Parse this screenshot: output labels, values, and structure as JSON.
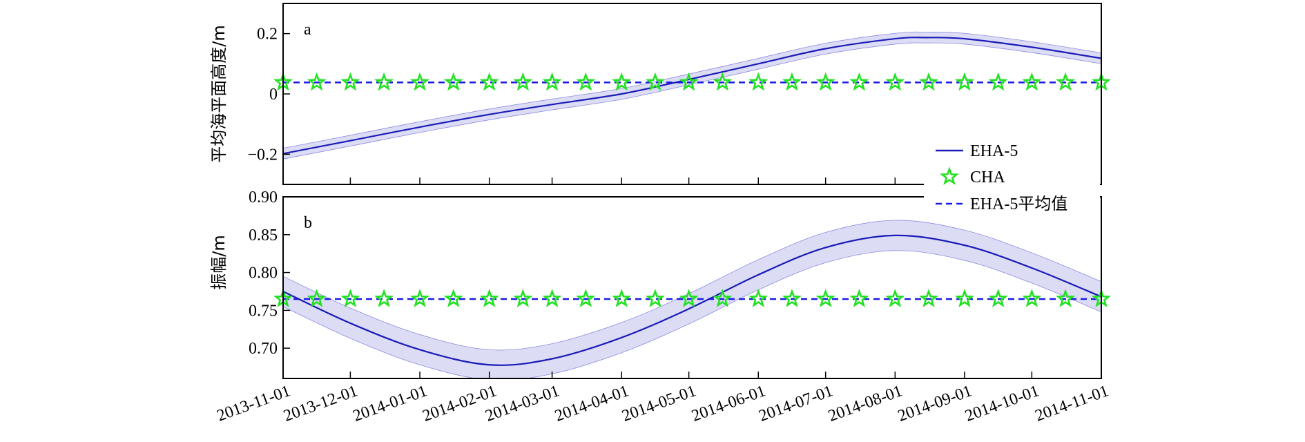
{
  "chart_data": [
    {
      "panel_label": "a",
      "type": "line",
      "ylabel": "平均海平面高度/m",
      "ylim": [
        -0.3,
        0.3
      ],
      "yticks": [
        -0.2,
        0,
        0.2
      ],
      "ytick_labels": [
        "−0.2",
        "0",
        "0.2"
      ],
      "series": [
        {
          "name": "EHA-5",
          "x": [
            "2013-11-01",
            "2013-12-01",
            "2014-01-01",
            "2014-02-01",
            "2014-03-01",
            "2014-04-01",
            "2014-05-01",
            "2014-06-01",
            "2014-07-01",
            "2014-08-01",
            "2014-08-15",
            "2014-09-01",
            "2014-10-01",
            "2014-11-01"
          ],
          "values": [
            -0.198,
            -0.155,
            -0.11,
            -0.068,
            -0.035,
            0.0,
            0.048,
            0.1,
            0.15,
            0.183,
            0.187,
            0.183,
            0.155,
            0.118
          ],
          "band_halfwidth": 0.018
        },
        {
          "name": "CHA",
          "x": [
            "2013-11-01",
            "2013-11-16",
            "2013-12-01",
            "2013-12-16",
            "2014-01-01",
            "2014-01-16",
            "2014-02-01",
            "2014-02-16",
            "2014-03-01",
            "2014-03-16",
            "2014-04-01",
            "2014-04-16",
            "2014-05-01",
            "2014-05-16",
            "2014-06-01",
            "2014-06-16",
            "2014-07-01",
            "2014-07-16",
            "2014-08-01",
            "2014-08-16",
            "2014-09-01",
            "2014-09-16",
            "2014-10-01",
            "2014-10-16",
            "2014-11-01"
          ],
          "values": [
            0.038,
            0.038,
            0.038,
            0.038,
            0.038,
            0.038,
            0.038,
            0.038,
            0.038,
            0.038,
            0.038,
            0.038,
            0.038,
            0.038,
            0.038,
            0.038,
            0.038,
            0.038,
            0.038,
            0.038,
            0.038,
            0.038,
            0.038,
            0.038,
            0.038
          ]
        },
        {
          "name": "EHA-5平均值",
          "values": [
            0.038
          ]
        }
      ]
    },
    {
      "panel_label": "b",
      "type": "line",
      "ylabel": "振幅/m",
      "ylim": [
        0.66,
        0.9
      ],
      "yticks": [
        0.7,
        0.75,
        0.8,
        0.85,
        0.9
      ],
      "ytick_labels": [
        "0.70",
        "0.75",
        "0.80",
        "0.85",
        "0.90"
      ],
      "series": [
        {
          "name": "EHA-5",
          "x": [
            "2013-11-01",
            "2013-12-01",
            "2014-01-01",
            "2014-02-01",
            "2014-03-01",
            "2014-04-01",
            "2014-05-01",
            "2014-06-01",
            "2014-07-01",
            "2014-08-01",
            "2014-09-01",
            "2014-10-01",
            "2014-11-01"
          ],
          "values": [
            0.775,
            0.733,
            0.698,
            0.678,
            0.686,
            0.714,
            0.752,
            0.797,
            0.833,
            0.849,
            0.836,
            0.806,
            0.768
          ],
          "band_halfwidth": 0.02
        },
        {
          "name": "CHA",
          "x": [
            "2013-11-01",
            "2013-11-16",
            "2013-12-01",
            "2013-12-16",
            "2014-01-01",
            "2014-01-16",
            "2014-02-01",
            "2014-02-16",
            "2014-03-01",
            "2014-03-16",
            "2014-04-01",
            "2014-04-16",
            "2014-05-01",
            "2014-05-16",
            "2014-06-01",
            "2014-06-16",
            "2014-07-01",
            "2014-07-16",
            "2014-08-01",
            "2014-08-16",
            "2014-09-01",
            "2014-09-16",
            "2014-10-01",
            "2014-10-16",
            "2014-11-01"
          ],
          "values": [
            0.765,
            0.765,
            0.765,
            0.765,
            0.765,
            0.765,
            0.765,
            0.765,
            0.765,
            0.765,
            0.765,
            0.765,
            0.765,
            0.765,
            0.765,
            0.765,
            0.765,
            0.765,
            0.765,
            0.765,
            0.765,
            0.765,
            0.765,
            0.765,
            0.765
          ]
        },
        {
          "name": "EHA-5平均值",
          "values": [
            0.765
          ]
        }
      ]
    }
  ],
  "x_axis": {
    "range": [
      "2013-11-01",
      "2014-11-01"
    ],
    "tick_labels": [
      "2013-11-01",
      "2013-12-01",
      "2014-01-01",
      "2014-02-01",
      "2014-03-01",
      "2014-04-01",
      "2014-05-01",
      "2014-06-01",
      "2014-07-01",
      "2014-08-01",
      "2014-09-01",
      "2014-10-01",
      "2014-11-01"
    ]
  },
  "legend": {
    "placement": "right, between panels",
    "entries": [
      {
        "label": "EHA-5",
        "style": "solid-line"
      },
      {
        "label": "CHA",
        "style": "star-marker"
      },
      {
        "label": "EHA-5平均值",
        "style": "dashed-line"
      }
    ]
  },
  "colors": {
    "line": "#1a1ab8",
    "band": "#dcdcf5",
    "band_edge": "#8c8ce0",
    "star_stroke": "#22e022",
    "mean_line": "#1a1ae6"
  }
}
